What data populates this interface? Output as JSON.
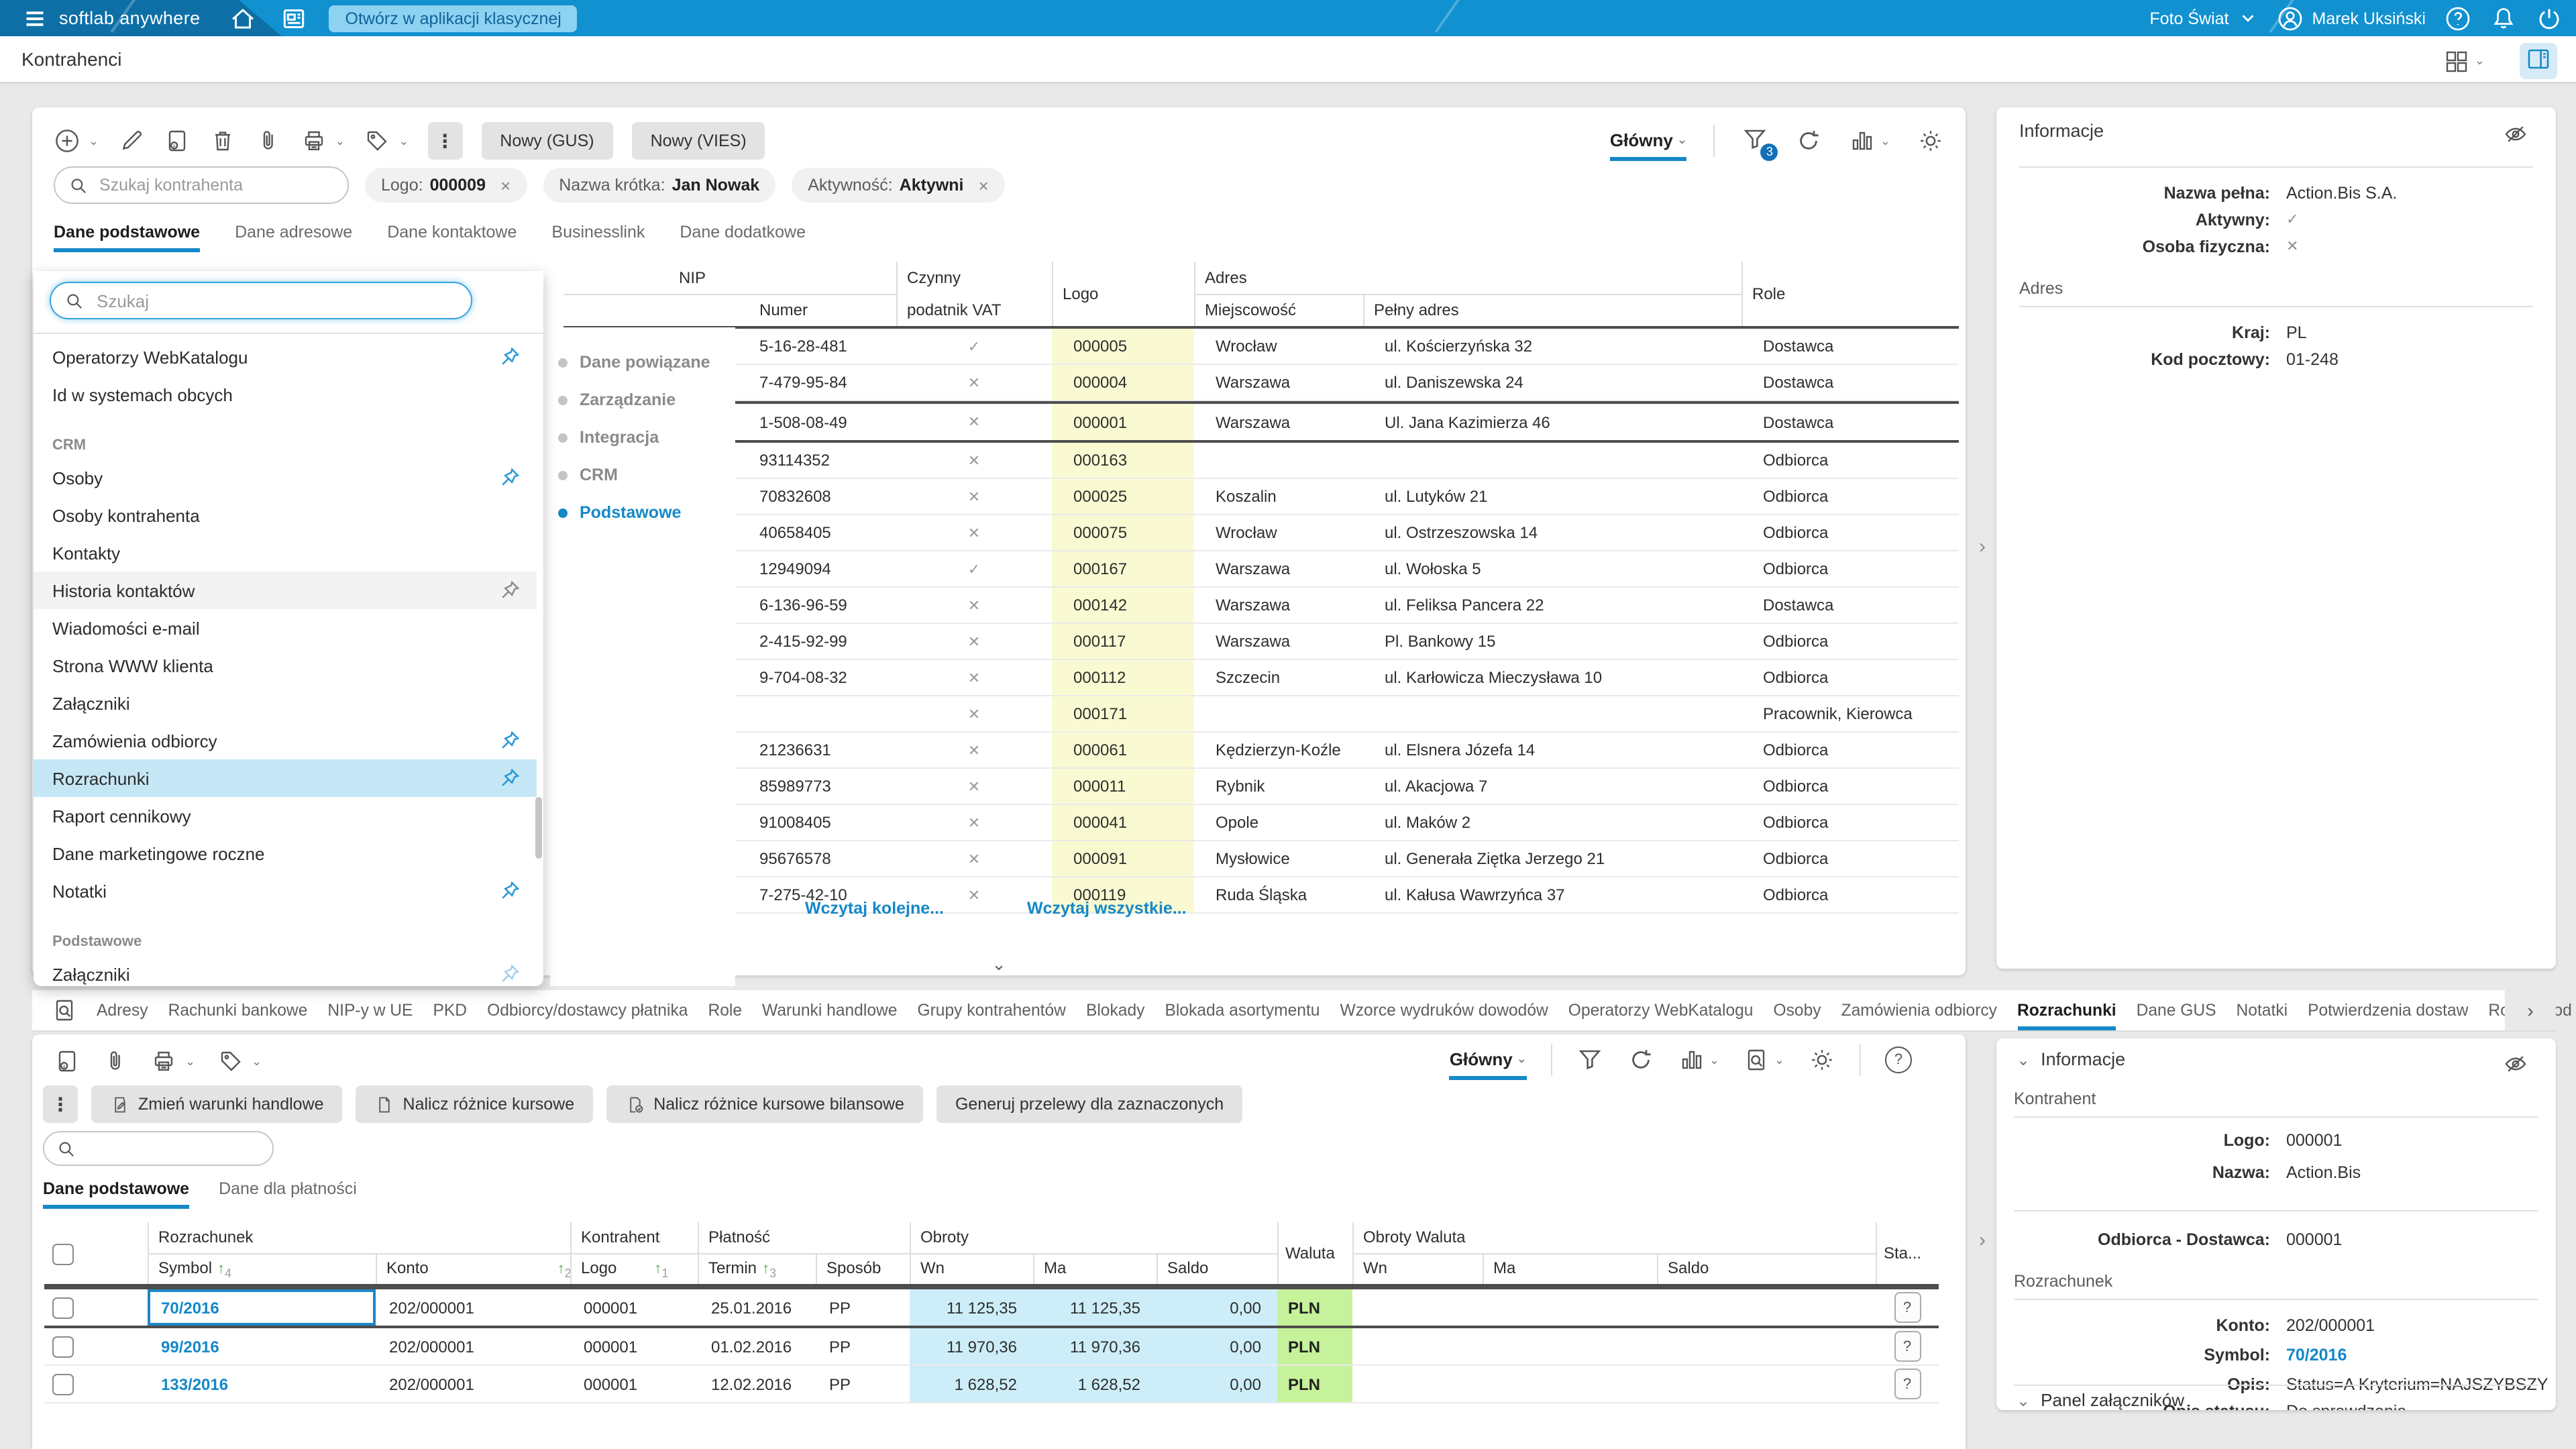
{
  "topbar": {
    "brand": "softlab anywhere",
    "open_classic_button": "Otwórz w aplikacji klasycznej",
    "company": "Foto Świat",
    "user_name": "Marek Uksiński"
  },
  "page": {
    "title": "Kontrahenci"
  },
  "toolbar": {
    "new_gus": "Nowy (GUS)",
    "new_vies": "Nowy (VIES)",
    "search_placeholder": "Szukaj kontrahenta",
    "chips": [
      {
        "label": "Logo:",
        "value": "000009",
        "removable": true
      },
      {
        "label": "Nazwa krótka:",
        "value": "Jan Nowak",
        "removable": false
      },
      {
        "label": "Aktywność:",
        "value": "Aktywni",
        "removable": true
      }
    ],
    "view_selector": "Główny",
    "filter_badge": "3"
  },
  "main_tabs": [
    {
      "label": "Dane podstawowe",
      "active": true
    },
    {
      "label": "Dane adresowe",
      "active": false
    },
    {
      "label": "Dane kontaktowe",
      "active": false
    },
    {
      "label": "Businesslink",
      "active": false
    },
    {
      "label": "Dane dodatkowe",
      "active": false
    }
  ],
  "context_menu": {
    "search_placeholder": "Szukaj",
    "items": [
      {
        "type": "item",
        "label": "Operatorzy WebKatalogu",
        "pin": "blue",
        "state": ""
      },
      {
        "type": "item",
        "label": "Id w systemach obcych",
        "pin": "none",
        "state": ""
      },
      {
        "type": "section",
        "label": "CRM"
      },
      {
        "type": "item",
        "label": "Osoby",
        "pin": "blue",
        "state": ""
      },
      {
        "type": "item",
        "label": "Osoby kontrahenta",
        "pin": "none",
        "state": ""
      },
      {
        "type": "item",
        "label": "Kontakty",
        "pin": "none",
        "state": ""
      },
      {
        "type": "item",
        "label": "Historia kontaktów",
        "pin": "gray",
        "state": "hover"
      },
      {
        "type": "item",
        "label": "Wiadomości e-mail",
        "pin": "none",
        "state": ""
      },
      {
        "type": "item",
        "label": "Strona WWW klienta",
        "pin": "none",
        "state": ""
      },
      {
        "type": "item",
        "label": "Załączniki",
        "pin": "none",
        "state": ""
      },
      {
        "type": "item",
        "label": "Zamówienia odbiorcy",
        "pin": "blue",
        "state": ""
      },
      {
        "type": "item",
        "label": "Rozrachunki",
        "pin": "blue",
        "state": "selected"
      },
      {
        "type": "item",
        "label": "Raport cennikowy",
        "pin": "none",
        "state": ""
      },
      {
        "type": "item",
        "label": "Dane marketingowe roczne",
        "pin": "none",
        "state": ""
      },
      {
        "type": "item",
        "label": "Notatki",
        "pin": "blue",
        "state": ""
      },
      {
        "type": "section",
        "label": "Podstawowe"
      },
      {
        "type": "item",
        "label": "Załączniki",
        "pin": "lightblue",
        "state": ""
      }
    ],
    "categories": [
      {
        "label": "Dane powiązane",
        "active": false
      },
      {
        "label": "Zarządzanie",
        "active": false
      },
      {
        "label": "Integracja",
        "active": false
      },
      {
        "label": "CRM",
        "active": false
      },
      {
        "label": "Podstawowe",
        "active": true
      }
    ]
  },
  "contractors": {
    "header": {
      "nip_group": "NIP",
      "numer": "Numer",
      "vat_line1": "Czynny",
      "vat_line2": "podatnik VAT",
      "logo": "Logo",
      "adres_group": "Adres",
      "miejscowosc": "Miejscowość",
      "pelny_adres": "Pełny adres",
      "role": "Role"
    },
    "rows": [
      {
        "nip": "5-16-28-481",
        "vat": "✓",
        "logo": "000005",
        "miejscowosc": "Wrocław",
        "adres": "ul. Kościerzyńska 32",
        "role": "Dostawca",
        "selected": false
      },
      {
        "nip": "7-479-95-84",
        "vat": "✕",
        "logo": "000004",
        "miejscowosc": "Warszawa",
        "adres": "ul. Daniszewska 24",
        "role": "Dostawca",
        "selected": false
      },
      {
        "nip": "1-508-08-49",
        "vat": "✕",
        "logo": "000001",
        "miejscowosc": "Warszawa",
        "adres": "Ul. Jana Kazimierza 46",
        "role": "Dostawca",
        "selected": true
      },
      {
        "nip": "93114352",
        "vat": "✕",
        "logo": "000163",
        "miejscowosc": "",
        "adres": "",
        "role": "Odbiorca",
        "selected": false
      },
      {
        "nip": "70832608",
        "vat": "✕",
        "logo": "000025",
        "miejscowosc": "Koszalin",
        "adres": "ul. Lutyków 21",
        "role": "Odbiorca",
        "selected": false
      },
      {
        "nip": "40658405",
        "vat": "✕",
        "logo": "000075",
        "miejscowosc": "Wrocław",
        "adres": "ul. Ostrzeszowska 14",
        "role": "Odbiorca",
        "selected": false
      },
      {
        "nip": "12949094",
        "vat": "✓",
        "logo": "000167",
        "miejscowosc": "Warszawa",
        "adres": "ul. Wołoska 5",
        "role": "Odbiorca",
        "selected": false
      },
      {
        "nip": "6-136-96-59",
        "vat": "✕",
        "logo": "000142",
        "miejscowosc": "Warszawa",
        "adres": "ul. Feliksa Pancera 22",
        "role": "Dostawca",
        "selected": false
      },
      {
        "nip": "2-415-92-99",
        "vat": "✕",
        "logo": "000117",
        "miejscowosc": "Warszawa",
        "adres": "Pl. Bankowy 15",
        "role": "Odbiorca",
        "selected": false
      },
      {
        "nip": "9-704-08-32",
        "vat": "✕",
        "logo": "000112",
        "miejscowosc": "Szczecin",
        "adres": "ul. Karłowicza Mieczysława 10",
        "role": "Odbiorca",
        "selected": false
      },
      {
        "nip": "",
        "vat": "✕",
        "logo": "000171",
        "miejscowosc": "",
        "adres": "",
        "role": "Pracownik, Kierowca",
        "selected": false
      },
      {
        "nip": "21236631",
        "vat": "✕",
        "logo": "000061",
        "miejscowosc": "Kędzierzyn-Koźle",
        "adres": "ul. Elsnera Józefa 14",
        "role": "Odbiorca",
        "selected": false
      },
      {
        "nip": "85989773",
        "vat": "✕",
        "logo": "000011",
        "miejscowosc": "Rybnik",
        "adres": "ul. Akacjowa 7",
        "role": "Odbiorca",
        "selected": false
      },
      {
        "nip": "91008405",
        "vat": "✕",
        "logo": "000041",
        "miejscowosc": "Opole",
        "adres": "ul. Maków 2",
        "role": "Odbiorca",
        "selected": false
      },
      {
        "nip": "95676578",
        "vat": "✕",
        "logo": "000091",
        "miejscowosc": "Mysłowice",
        "adres": "ul. Generała Ziętka Jerzego 21",
        "role": "Odbiorca",
        "selected": false
      },
      {
        "nip": "7-275-42-10",
        "vat": "✕",
        "logo": "000119",
        "miejscowosc": "Ruda Śląska",
        "adres": "ul. Kałusa Wawrzyńca 37",
        "role": "Odbiorca",
        "selected": false
      }
    ],
    "load_more": "Wczytaj kolejne...",
    "load_all": "Wczytaj wszystkie..."
  },
  "info_top": {
    "title": "Informacje",
    "fields": [
      {
        "label": "Nazwa pełna:",
        "value": "Action.Bis S.A.",
        "mark": false
      },
      {
        "label": "Aktywny:",
        "value": "✓",
        "mark": true
      },
      {
        "label": "Osoba fizyczna:",
        "value": "✕",
        "mark": true
      }
    ],
    "section": "Adres",
    "address_fields": [
      {
        "label": "Kraj:",
        "value": "PL",
        "mark": false
      },
      {
        "label": "Kod pocztowy:",
        "value": "01-248",
        "mark": false
      }
    ]
  },
  "bottom_tabs": {
    "active_index": 14,
    "labels": [
      "Adresy",
      "Rachunki bankowe",
      "NIP-y w UE",
      "PKD",
      "Odbiorcy/dostawcy płatnika",
      "Role",
      "Warunki handlowe",
      "Grupy kontrahentów",
      "Blokady",
      "Blokada asortymentu",
      "Wzorce wydruków dowodów",
      "Operatorzy WebKatalogu",
      "Osoby",
      "Zamówienia odbiorcy",
      "Rozrachunki",
      "Dane GUS",
      "Notatki",
      "Potwierdzenia dostaw",
      "Rodzaj podmiotu"
    ]
  },
  "settlements": {
    "view_selector": "Główny",
    "action_buttons": [
      {
        "label": "Zmień warunki handlowe",
        "icon": "doc-edit"
      },
      {
        "label": "Nalicz różnice kursowe",
        "icon": "doc"
      },
      {
        "label": "Nalicz różnice kursowe bilansowe",
        "icon": "doc-check"
      },
      {
        "label": "Generuj przelewy dla zaznaczonych",
        "icon": "none"
      }
    ],
    "tabs": [
      {
        "label": "Dane podstawowe",
        "active": true
      },
      {
        "label": "Dane dla płatności",
        "active": false
      }
    ],
    "header": {
      "rozrachunek_group": "Rozrachunek",
      "symbol": "Symbol",
      "konto": "Konto",
      "kontrahent_group": "Kontrahent",
      "logo": "Logo",
      "platnosc_group": "Płatność",
      "termin": "Termin",
      "sposob": "Sposób",
      "obroty_group": "Obroty",
      "wn": "Wn",
      "ma": "Ma",
      "saldo": "Saldo",
      "waluta": "Waluta",
      "obroty_waluta_group": "Obroty Waluta",
      "sta": "Sta...",
      "sort": {
        "symbol": "4",
        "konto": "2",
        "logo": "1",
        "termin": "3"
      }
    },
    "rows": [
      {
        "symbol": "70/2016",
        "konto": "202/000001",
        "logo": "000001",
        "termin": "25.01.2016",
        "sposob": "PP",
        "wn": "11 125,35",
        "ma": "11 125,35",
        "saldo": "0,00",
        "waluta": "PLN",
        "selected": true
      },
      {
        "symbol": "99/2016",
        "konto": "202/000001",
        "logo": "000001",
        "termin": "01.02.2016",
        "sposob": "PP",
        "wn": "11 970,36",
        "ma": "11 970,36",
        "saldo": "0,00",
        "waluta": "PLN",
        "selected": false
      },
      {
        "symbol": "133/2016",
        "konto": "202/000001",
        "logo": "000001",
        "termin": "12.02.2016",
        "sposob": "PP",
        "wn": "1 628,52",
        "ma": "1 628,52",
        "saldo": "0,00",
        "waluta": "PLN",
        "selected": false
      }
    ],
    "status_button": "?"
  },
  "info_bottom": {
    "title": "Informacje",
    "section1": "Kontrahent",
    "fields1": [
      {
        "label": "Logo:",
        "value": "000001",
        "link": false
      },
      {
        "label": "Nazwa:",
        "value": "Action.Bis",
        "link": false
      }
    ],
    "field_mid": {
      "label": "Odbiorca - Dostawca:",
      "value": "000001"
    },
    "section2": "Rozrachunek",
    "fields2": [
      {
        "label": "Konto:",
        "value": "202/000001",
        "link": false
      },
      {
        "label": "Symbol:",
        "value": "70/2016",
        "link": true
      },
      {
        "label": "Opis:",
        "value": "Status=A Kryterium=NAJSZYBSZY",
        "link": false
      },
      {
        "label": "Opis statusu:",
        "value": "Do sprawdzenia",
        "link": false
      }
    ],
    "attachments_panel": "Panel załączników"
  },
  "colors": {
    "accent": "#1588c8",
    "topbar": "#1191d0",
    "selected_menu": "#c5e7f5",
    "logo_column": "#fafad2",
    "obroty_column": "#cdeef8",
    "waluta_column": "#c5f29b"
  }
}
